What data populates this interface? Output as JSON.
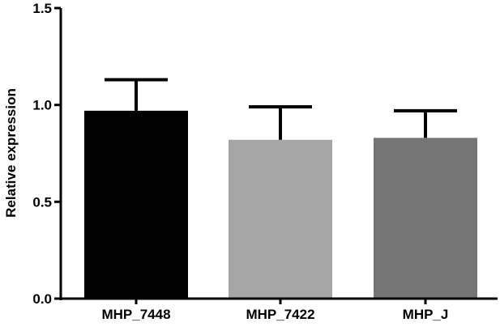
{
  "chart_data": {
    "type": "bar",
    "title": "",
    "xlabel": "",
    "ylabel": "Relative expression",
    "ylim": [
      0,
      1.5
    ],
    "yticks": [
      0,
      0.5,
      1.0,
      1.5
    ],
    "ytick_labels": [
      "0.0",
      "0.5",
      "1.0",
      "1.5"
    ],
    "categories": [
      "MHP_7448",
      "MHP_7422",
      "MHP_J"
    ],
    "values": [
      0.97,
      0.82,
      0.83
    ],
    "errors": [
      0.16,
      0.17,
      0.14
    ],
    "colors": [
      "#000000",
      "#a6a6a6",
      "#757575"
    ],
    "grid": false,
    "legend": "none"
  }
}
